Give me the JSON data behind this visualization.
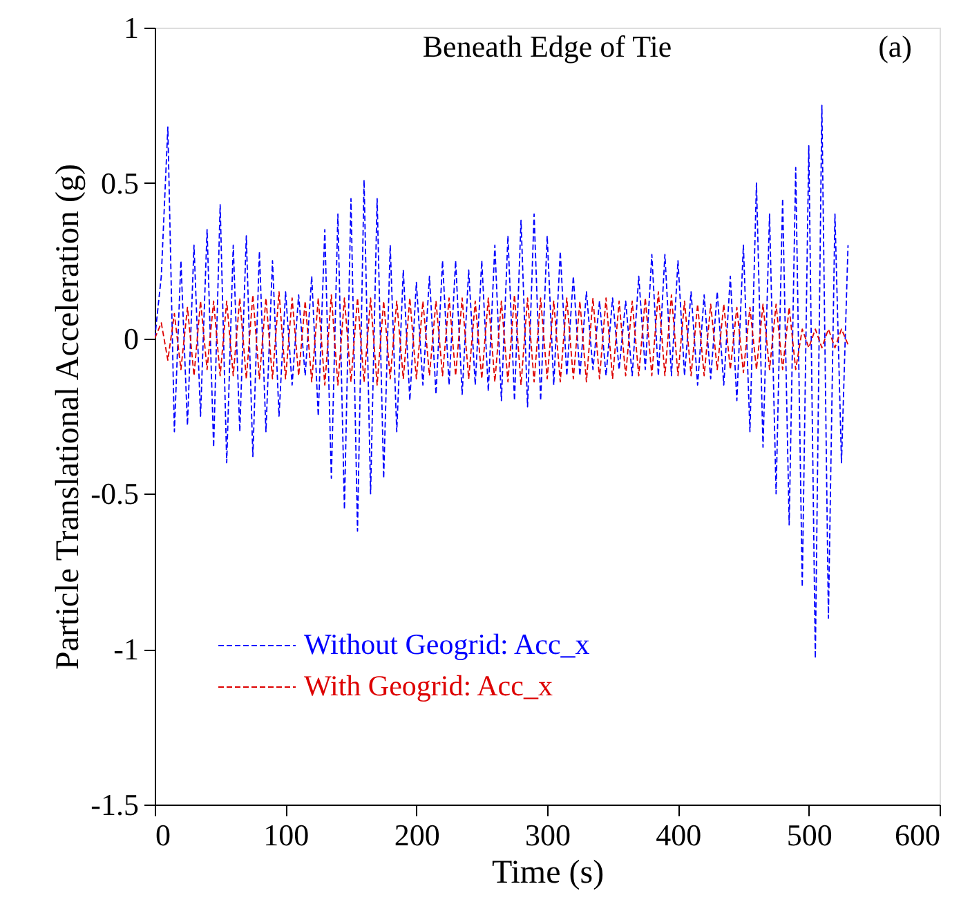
{
  "chart_data": {
    "type": "line",
    "title": "Beneath Edge of Tie",
    "xlabel": "Time (s)",
    "ylabel": "Particle Translational Acceleration (g)",
    "annotations": [
      "(a)"
    ],
    "xlim": [
      0,
      600
    ],
    "xticks": [
      0,
      100,
      200,
      300,
      400,
      500,
      600
    ],
    "ylim": [
      -1.5,
      1
    ],
    "yticks": [
      -1.5,
      -1,
      -0.5,
      0,
      0.5,
      1
    ],
    "legend": "bottom left",
    "line_style": "dashed",
    "x": [
      0,
      5,
      10,
      15,
      20,
      25,
      30,
      35,
      40,
      45,
      50,
      55,
      60,
      65,
      70,
      75,
      80,
      85,
      90,
      95,
      100,
      105,
      110,
      115,
      120,
      125,
      130,
      135,
      140,
      145,
      150,
      155,
      160,
      165,
      170,
      175,
      180,
      185,
      190,
      195,
      200,
      205,
      210,
      215,
      220,
      225,
      230,
      235,
      240,
      245,
      250,
      255,
      260,
      265,
      270,
      275,
      280,
      285,
      290,
      295,
      300,
      305,
      310,
      315,
      320,
      325,
      330,
      335,
      340,
      345,
      350,
      355,
      360,
      365,
      370,
      375,
      380,
      385,
      390,
      395,
      400,
      405,
      410,
      415,
      420,
      425,
      430,
      435,
      440,
      445,
      450,
      455,
      460,
      465,
      470,
      475,
      480,
      485,
      490,
      495,
      500,
      505,
      510,
      515,
      520,
      525,
      530
    ],
    "series": [
      {
        "name": "Without Geogrid: Acc_x",
        "color": "#0000ff",
        "values": [
          0,
          0.2,
          0.68,
          -0.3,
          0.25,
          -0.28,
          0.3,
          -0.25,
          0.35,
          -0.35,
          0.43,
          -0.4,
          0.3,
          -0.3,
          0.33,
          -0.38,
          0.28,
          -0.3,
          0.25,
          -0.25,
          0.15,
          -0.15,
          0.14,
          -0.12,
          0.2,
          -0.25,
          0.35,
          -0.45,
          0.4,
          -0.55,
          0.45,
          -0.62,
          0.51,
          -0.5,
          0.45,
          -0.45,
          0.3,
          -0.3,
          0.22,
          -0.2,
          0.18,
          -0.15,
          0.2,
          -0.18,
          0.25,
          -0.15,
          0.25,
          -0.18,
          0.22,
          -0.15,
          0.25,
          -0.17,
          0.3,
          -0.2,
          0.33,
          -0.2,
          0.38,
          -0.22,
          0.4,
          -0.2,
          0.33,
          -0.15,
          0.28,
          -0.12,
          0.2,
          -0.12,
          0.15,
          -0.1,
          0.12,
          -0.12,
          0.13,
          -0.1,
          0.12,
          -0.12,
          0.2,
          -0.1,
          0.27,
          -0.12,
          0.27,
          -0.12,
          0.25,
          -0.12,
          0.15,
          -0.15,
          0.14,
          -0.13,
          0.15,
          -0.15,
          0.2,
          -0.2,
          0.3,
          -0.3,
          0.5,
          -0.35,
          0.4,
          -0.5,
          0.45,
          -0.6,
          0.55,
          -0.8,
          0.62,
          -1.03,
          0.75,
          -0.9,
          0.4,
          -0.4,
          0.3
        ]
      },
      {
        "name": "With Geogrid: Acc_x",
        "color": "#dd0000",
        "values": [
          0,
          0.05,
          -0.07,
          0.08,
          -0.1,
          0.1,
          -0.12,
          0.12,
          -0.1,
          0.12,
          -0.12,
          0.12,
          -0.12,
          0.13,
          -0.13,
          0.14,
          -0.13,
          0.13,
          -0.13,
          0.15,
          -0.13,
          0.13,
          -0.12,
          0.12,
          -0.14,
          0.13,
          -0.15,
          0.14,
          -0.15,
          0.13,
          -0.14,
          0.13,
          -0.14,
          0.13,
          -0.15,
          0.12,
          -0.13,
          0.12,
          -0.13,
          0.13,
          -0.13,
          0.12,
          -0.12,
          0.12,
          -0.12,
          0.13,
          -0.12,
          0.13,
          -0.13,
          0.12,
          -0.13,
          0.13,
          -0.14,
          0.12,
          -0.14,
          0.14,
          -0.15,
          0.13,
          -0.14,
          0.13,
          -0.13,
          0.12,
          -0.14,
          0.13,
          -0.13,
          0.12,
          -0.14,
          0.13,
          -0.13,
          0.13,
          -0.13,
          0.12,
          -0.12,
          0.12,
          -0.12,
          0.13,
          -0.12,
          0.15,
          -0.12,
          0.14,
          -0.12,
          0.12,
          -0.12,
          0.11,
          -0.12,
          0.11,
          -0.1,
          0.11,
          -0.1,
          0.1,
          -0.11,
          0.1,
          -0.1,
          0.11,
          -0.1,
          0.11,
          -0.1,
          0.1,
          -0.1,
          0.03,
          -0.03,
          0.03,
          -0.03,
          0.03,
          -0.03,
          0.03,
          -0.02
        ]
      }
    ]
  }
}
